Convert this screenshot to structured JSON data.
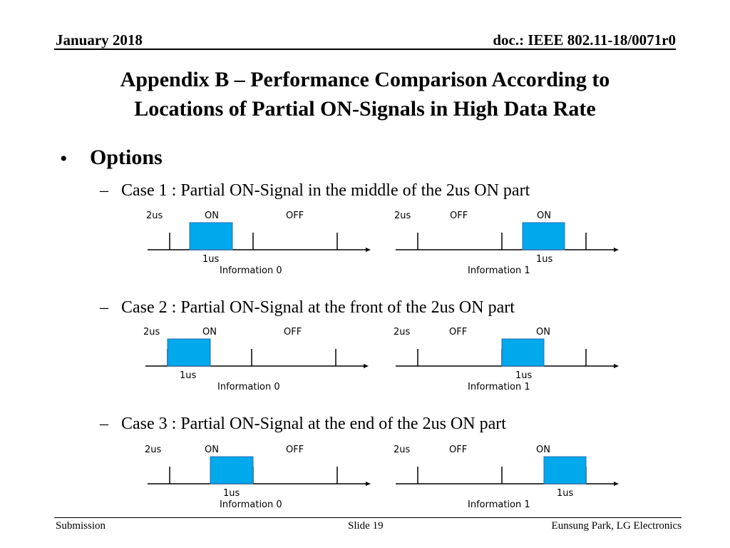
{
  "header": {
    "date": "January 2018",
    "doc": "doc.: IEEE 802.11-18/0071r0"
  },
  "title": {
    "line1": "Appendix B – Performance Comparison According to",
    "line2": "Locations of Partial ON-Signals in High Data Rate"
  },
  "bullet": "Options",
  "cases": [
    {
      "label": "Case 1 : Partial ON-Signal in the middle of the 2us ON part",
      "left": {
        "labels": [
          "2us",
          "ON",
          "OFF"
        ],
        "pulse_label": "1us",
        "info": "Information 0"
      },
      "right": {
        "labels": [
          "2us",
          "OFF",
          "ON"
        ],
        "pulse_label": "1us",
        "info": "Information 1"
      }
    },
    {
      "label": "Case 2 : Partial ON-Signal at the front of the 2us ON part",
      "left": {
        "labels": [
          "2us",
          "ON",
          "OFF"
        ],
        "pulse_label": "1us",
        "info": "Information 0"
      },
      "right": {
        "labels": [
          "2us",
          "OFF",
          "ON"
        ],
        "pulse_label": "1us",
        "info": "Information 1"
      }
    },
    {
      "label": "Case 3 : Partial ON-Signal at the end of the 2us ON part",
      "left": {
        "labels": [
          "2us",
          "ON",
          "OFF"
        ],
        "pulse_label": "1us",
        "info": "Information 0"
      },
      "right": {
        "labels": [
          "2us",
          "OFF",
          "ON"
        ],
        "pulse_label": "1us",
        "info": "Information 1"
      }
    }
  ],
  "footer": {
    "left": "Submission",
    "center": "Slide 19",
    "right": "Eunsung Park, LG Electronics"
  },
  "colors": {
    "pulse_fill": "#00a8ec",
    "pulse_stroke": "#2a6fb0",
    "axis": "#000000"
  }
}
